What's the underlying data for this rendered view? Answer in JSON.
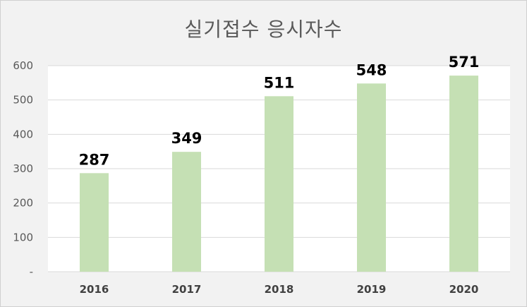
{
  "chart_data": {
    "type": "bar",
    "title": "실기접수 응시자수",
    "categories": [
      "2016",
      "2017",
      "2018",
      "2019",
      "2020"
    ],
    "values": [
      287,
      349,
      511,
      548,
      571
    ],
    "data_labels": [
      "287",
      "349",
      "511",
      "548",
      "571"
    ],
    "y_ticks": [
      {
        "value": 0,
        "label": "-"
      },
      {
        "value": 100,
        "label": "100"
      },
      {
        "value": 200,
        "label": "200"
      },
      {
        "value": 300,
        "label": "300"
      },
      {
        "value": 400,
        "label": "400"
      },
      {
        "value": 500,
        "label": "500"
      },
      {
        "value": 600,
        "label": "600"
      }
    ],
    "ylim": [
      0,
      600
    ],
    "grid": true,
    "legend": "none",
    "colors": {
      "bar": "#c5e0b4",
      "plot_background": "#ffffff",
      "chart_background": "#f2f2f2",
      "grid": "#d9d9d9"
    }
  }
}
